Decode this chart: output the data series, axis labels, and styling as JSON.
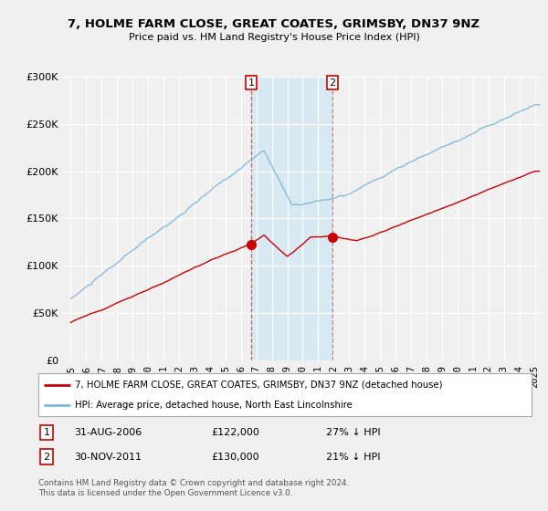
{
  "title": "7, HOLME FARM CLOSE, GREAT COATES, GRIMSBY, DN37 9NZ",
  "subtitle": "Price paid vs. HM Land Registry's House Price Index (HPI)",
  "hpi_color": "#7ab8d9",
  "price_color": "#cc0000",
  "background_color": "#f0f0f0",
  "plot_bg_color": "#f0f0f0",
  "shade_color": "#d4e8f5",
  "transaction1": {
    "date": "31-AUG-2006",
    "price": 122000,
    "label": "1",
    "hpi_diff": "27% ↓ HPI"
  },
  "transaction2": {
    "date": "30-NOV-2011",
    "price": 130000,
    "label": "2",
    "hpi_diff": "21% ↓ HPI"
  },
  "legend_line1": "7, HOLME FARM CLOSE, GREAT COATES, GRIMSBY, DN37 9NZ (detached house)",
  "legend_line2": "HPI: Average price, detached house, North East Lincolnshire",
  "footer": "Contains HM Land Registry data © Crown copyright and database right 2024.\nThis data is licensed under the Open Government Licence v3.0.",
  "ylim": [
    0,
    300000
  ],
  "yticks": [
    0,
    50000,
    100000,
    150000,
    200000,
    250000,
    300000
  ],
  "xlim_start": 1994.5,
  "xlim_end": 2025.5,
  "t1_x": 2006.667,
  "t2_x": 2011.917,
  "t1_y": 122000,
  "t2_y": 130000
}
